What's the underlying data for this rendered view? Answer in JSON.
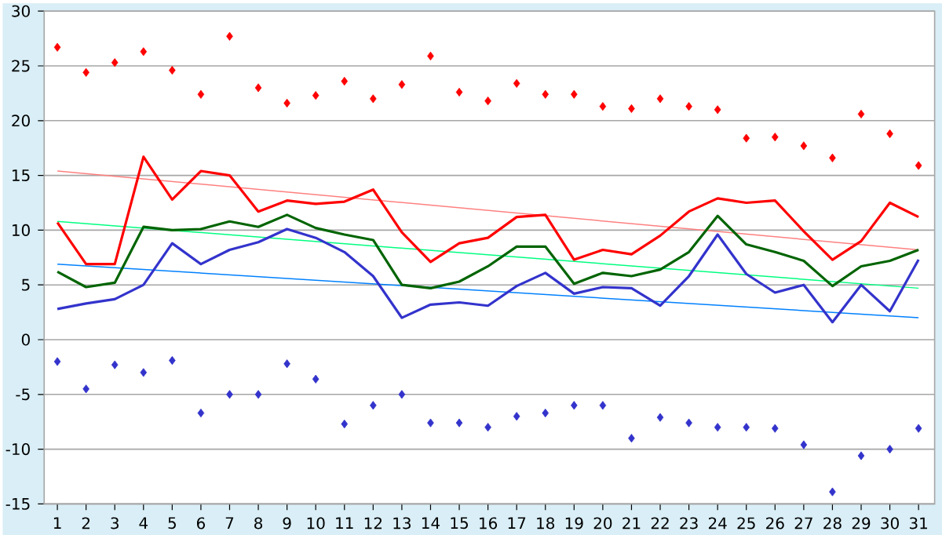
{
  "chart_data": {
    "type": "line",
    "categories": [
      "1",
      "2",
      "3",
      "4",
      "5",
      "6",
      "7",
      "8",
      "9",
      "10",
      "11",
      "12",
      "13",
      "14",
      "15",
      "16",
      "17",
      "18",
      "19",
      "20",
      "21",
      "22",
      "23",
      "24",
      "25",
      "26",
      "27",
      "28",
      "29",
      "30",
      "31"
    ],
    "ylim": [
      -15,
      30
    ],
    "yticks": [
      -15,
      -10,
      -5,
      0,
      5,
      10,
      15,
      20,
      25,
      30
    ],
    "grid": "y",
    "series": [
      {
        "color": "#ff8080",
        "x": [
          "1",
          "31"
        ],
        "values": [
          15.4,
          8.2
        ],
        "marker": "none"
      },
      {
        "color": "#00ff80",
        "x": [
          "1",
          "31"
        ],
        "values": [
          10.8,
          4.7
        ],
        "marker": "none"
      },
      {
        "color": "#0080ff",
        "x": [
          "1",
          "31"
        ],
        "values": [
          6.9,
          2.0
        ],
        "marker": "none"
      },
      {
        "type": "scatter",
        "color": "#ff0000",
        "marker": "diamond",
        "values": [
          26.7,
          24.4,
          25.3,
          26.3,
          24.6,
          22.4,
          27.7,
          23.0,
          21.6,
          22.3,
          23.6,
          22.0,
          23.3,
          25.9,
          22.6,
          21.8,
          23.4,
          22.4,
          22.4,
          21.3,
          21.1,
          22.0,
          21.3,
          21.0,
          18.4,
          18.5,
          17.7,
          16.6,
          20.6,
          18.8,
          15.9
        ]
      },
      {
        "type": "scatter",
        "color": "#3333cc",
        "marker": "diamond",
        "values": [
          -2.0,
          -4.5,
          -2.3,
          -3.0,
          -1.9,
          -6.7,
          -5.0,
          -5.0,
          -2.2,
          -3.6,
          -7.7,
          -6.0,
          -5.0,
          -7.6,
          -7.6,
          -8.0,
          -7.0,
          -6.7,
          -6.0,
          -6.0,
          -9.0,
          -7.1,
          -7.6,
          -8.0,
          -8.0,
          -8.1,
          -9.6,
          -13.9,
          -10.6,
          -10.0,
          -8.1
        ]
      },
      {
        "color": "#ff0000",
        "marker": "none",
        "values": [
          10.7,
          6.9,
          6.9,
          16.7,
          12.8,
          15.4,
          15.0,
          11.7,
          12.7,
          12.4,
          12.6,
          13.7,
          9.8,
          7.1,
          8.8,
          9.3,
          11.2,
          11.4,
          7.3,
          8.2,
          7.8,
          9.5,
          11.7,
          12.9,
          12.5,
          12.7,
          9.9,
          7.3,
          9.0,
          12.5,
          11.2
        ]
      },
      {
        "color": "#006400",
        "marker": "none",
        "values": [
          6.2,
          4.8,
          5.2,
          10.3,
          10.0,
          10.1,
          10.8,
          10.3,
          11.4,
          10.2,
          9.6,
          9.1,
          5.0,
          4.7,
          5.3,
          6.7,
          8.5,
          8.5,
          5.1,
          6.1,
          5.8,
          6.4,
          8.0,
          11.3,
          8.7,
          8.0,
          7.2,
          4.9,
          6.7,
          7.2,
          8.2
        ]
      },
      {
        "color": "#3333cc",
        "marker": "none",
        "values": [
          2.8,
          3.3,
          3.7,
          5.0,
          8.8,
          6.9,
          8.2,
          8.9,
          10.1,
          9.3,
          8.0,
          5.8,
          2.0,
          3.2,
          3.4,
          3.1,
          4.9,
          6.1,
          4.2,
          4.8,
          4.7,
          3.1,
          5.8,
          9.6,
          6.0,
          4.3,
          5.0,
          1.6,
          5.0,
          2.6,
          7.3
        ]
      }
    ]
  }
}
